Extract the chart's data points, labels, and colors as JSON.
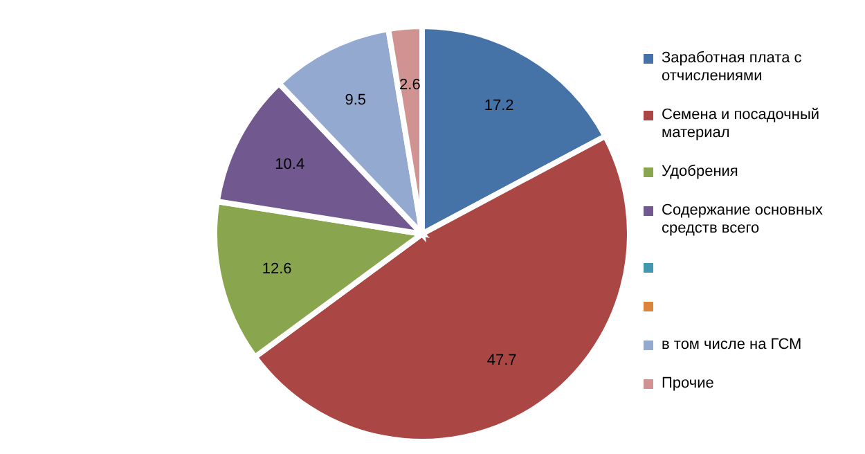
{
  "chart_data": {
    "type": "pie",
    "categories": [
      "Заработная плата с отчислениями",
      "Семена и посадочный материал",
      "Удобрения",
      "Содержание основных средств всего",
      null,
      null,
      "в том числе на ГСМ",
      "Прочие"
    ],
    "values": [
      17.2,
      47.7,
      12.6,
      10.4,
      null,
      null,
      9.5,
      2.6
    ],
    "colors": [
      "#4572a7",
      "#aa4643",
      "#89a54e",
      "#71588f",
      "#4198af",
      "#db843d",
      "#93a9cf",
      "#d19392"
    ],
    "data_labels": true,
    "legend": "right"
  }
}
